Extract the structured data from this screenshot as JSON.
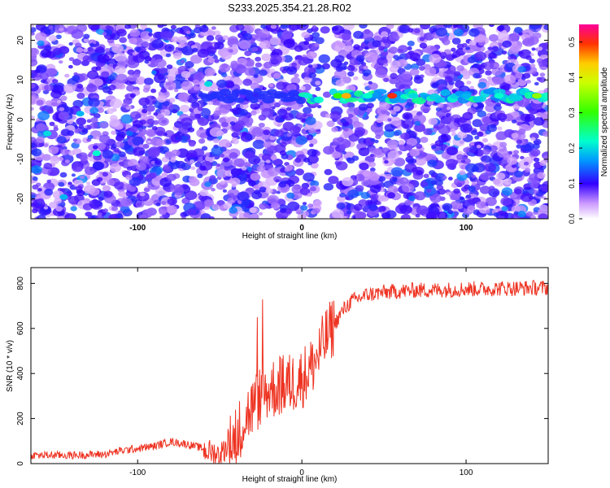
{
  "title": "S233.2025.354.21.28.R02",
  "chart_data": [
    {
      "type": "heatmap",
      "xlabel": "Height of straight line (km)",
      "ylabel": "Frequency (Hz)",
      "xlim": [
        -165,
        150
      ],
      "ylim": [
        -25,
        24
      ],
      "xticks": [
        -100,
        0,
        100
      ],
      "yticks": [
        -20,
        -10,
        0,
        10,
        20
      ],
      "colorbar": {
        "label": "Normalized spectral amplitude",
        "range": [
          0,
          0.55
        ],
        "ticks": [
          0.0,
          0.1,
          0.2,
          0.3,
          0.4,
          0.5
        ]
      },
      "notes": "Speckled noise field with a horizontal signal band near 6 Hz strongest between 20 and 150 km; gap near x=15 km",
      "band_frequency_hz": 6
    },
    {
      "type": "line",
      "xlabel": "Height of straight line (km)",
      "ylabel": "SNR (10 * v/v)",
      "xlim": [
        -165,
        150
      ],
      "ylim": [
        0,
        870
      ],
      "xticks": [
        -100,
        0,
        100
      ],
      "yticks": [
        0,
        200,
        400,
        600,
        800
      ],
      "series": [
        {
          "name": "SNR",
          "color": "#ee3322",
          "x": [
            -165,
            -140,
            -120,
            -110,
            -100,
            -90,
            -80,
            -70,
            -60,
            -50,
            -45,
            -40,
            -35,
            -30,
            -25,
            -20,
            -15,
            -10,
            -5,
            0,
            5,
            10,
            15,
            20,
            25,
            30,
            40,
            50,
            60,
            70,
            80,
            90,
            100,
            110,
            120,
            130,
            140,
            150
          ],
          "y": [
            30,
            30,
            35,
            50,
            60,
            70,
            90,
            80,
            60,
            40,
            80,
            120,
            200,
            250,
            300,
            330,
            340,
            350,
            360,
            380,
            420,
            480,
            560,
            620,
            680,
            720,
            750,
            760,
            765,
            770,
            770,
            772,
            775,
            775,
            778,
            778,
            780,
            780
          ]
        }
      ]
    }
  ]
}
